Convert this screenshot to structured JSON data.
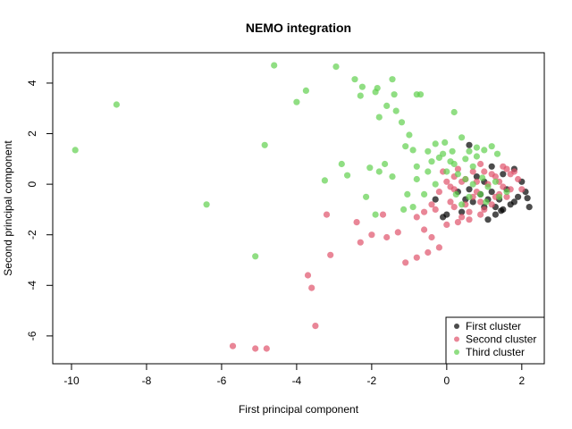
{
  "chart_data": {
    "type": "scatter",
    "title": "NEMO integration",
    "xlabel": "First principal component",
    "ylabel": "Second principal component",
    "xlim": [
      -10.5,
      2.6
    ],
    "ylim": [
      -7.1,
      5.2
    ],
    "xticks": [
      -10,
      -8,
      -6,
      -4,
      -2,
      0,
      2
    ],
    "yticks": [
      -6,
      -4,
      -2,
      0,
      2,
      4
    ],
    "legend_position": "bottom-right",
    "grid": false,
    "series": [
      {
        "name": "First cluster",
        "color": "#000000",
        "points": [
          [
            0.6,
            1.55
          ],
          [
            1.2,
            0.7
          ],
          [
            1.5,
            0.4
          ],
          [
            1.8,
            0.6
          ],
          [
            2.0,
            0.1
          ],
          [
            2.1,
            -0.3
          ],
          [
            2.15,
            -0.55
          ],
          [
            2.2,
            -0.9
          ],
          [
            1.9,
            -0.5
          ],
          [
            1.7,
            -0.8
          ],
          [
            1.5,
            -1.0
          ],
          [
            1.3,
            -1.2
          ],
          [
            1.1,
            -1.4
          ],
          [
            1.0,
            -0.9
          ],
          [
            0.9,
            -0.4
          ],
          [
            1.2,
            -0.3
          ],
          [
            1.4,
            -0.6
          ],
          [
            1.6,
            -0.2
          ],
          [
            1.8,
            -0.7
          ],
          [
            0.8,
            0.3
          ],
          [
            0.7,
            -0.7
          ],
          [
            0.5,
            -0.6
          ],
          [
            0.4,
            -1.1
          ],
          [
            0.3,
            -0.3
          ],
          [
            0.0,
            -1.2
          ],
          [
            -0.3,
            -0.6
          ],
          [
            -0.1,
            -1.3
          ],
          [
            1.0,
            0.1
          ],
          [
            1.3,
            -0.9
          ],
          [
            0.6,
            -0.2
          ],
          [
            1.45,
            -1.05
          ],
          [
            1.1,
            -0.6
          ]
        ]
      },
      {
        "name": "Second cluster",
        "color": "#df536b",
        "points": [
          [
            0.9,
            0.8
          ],
          [
            1.0,
            0.5
          ],
          [
            1.3,
            0.3
          ],
          [
            1.5,
            0.7
          ],
          [
            1.7,
            0.4
          ],
          [
            1.9,
            0.2
          ],
          [
            1.1,
            0.0
          ],
          [
            1.4,
            0.1
          ],
          [
            1.7,
            -0.2
          ],
          [
            0.8,
            -0.3
          ],
          [
            0.5,
            -0.8
          ],
          [
            0.2,
            -0.9
          ],
          [
            0.4,
            -1.3
          ],
          [
            0.6,
            -1.1
          ],
          [
            0.9,
            -1.2
          ],
          [
            1.2,
            -0.8
          ],
          [
            1.4,
            -0.4
          ],
          [
            1.6,
            -0.5
          ],
          [
            0.3,
            0.6
          ],
          [
            0.0,
            0.1
          ],
          [
            -0.2,
            -0.3
          ],
          [
            -0.4,
            -0.8
          ],
          [
            -0.6,
            -1.1
          ],
          [
            -0.8,
            -1.3
          ],
          [
            -0.6,
            -1.8
          ],
          [
            -0.4,
            -2.1
          ],
          [
            -0.2,
            -2.5
          ],
          [
            -0.5,
            -2.7
          ],
          [
            -0.8,
            -2.9
          ],
          [
            -1.1,
            -3.1
          ],
          [
            -1.3,
            -1.9
          ],
          [
            -1.6,
            -2.1
          ],
          [
            -2.0,
            -2.0
          ],
          [
            -1.7,
            -1.2
          ],
          [
            -2.4,
            -1.5
          ],
          [
            -2.3,
            -2.3
          ],
          [
            -3.2,
            -1.2
          ],
          [
            -3.1,
            -2.8
          ],
          [
            -3.7,
            -3.6
          ],
          [
            -3.6,
            -4.1
          ],
          [
            -3.5,
            -5.6
          ],
          [
            -5.7,
            -6.4
          ],
          [
            -5.1,
            -6.5
          ],
          [
            -4.8,
            -6.5
          ],
          [
            0.1,
            -0.1
          ],
          [
            0.2,
            0.3
          ],
          [
            0.5,
            0.2
          ],
          [
            0.7,
            0.5
          ],
          [
            1.8,
            0.5
          ],
          [
            2.0,
            -0.2
          ],
          [
            0.6,
            -1.4
          ],
          [
            0.3,
            -1.5
          ],
          [
            0.0,
            -1.6
          ],
          [
            0.9,
            -0.7
          ],
          [
            1.0,
            -1.0
          ],
          [
            0.1,
            -0.7
          ],
          [
            -0.3,
            -1.0
          ],
          [
            1.2,
            0.4
          ],
          [
            0.4,
            0.1
          ],
          [
            0.7,
            -0.5
          ],
          [
            1.5,
            -0.1
          ],
          [
            1.6,
            0.6
          ],
          [
            0.2,
            -0.2
          ],
          [
            0.8,
            0.1
          ],
          [
            -0.1,
            0.5
          ],
          [
            1.3,
            -0.5
          ]
        ]
      },
      {
        "name": "Third cluster",
        "color": "#61d04f",
        "points": [
          [
            -9.9,
            1.35
          ],
          [
            -8.8,
            3.15
          ],
          [
            -6.4,
            -0.8
          ],
          [
            -5.1,
            -2.85
          ],
          [
            -4.85,
            1.55
          ],
          [
            -4.6,
            4.7
          ],
          [
            -4.0,
            3.25
          ],
          [
            -3.75,
            3.7
          ],
          [
            -2.95,
            4.65
          ],
          [
            -2.45,
            4.15
          ],
          [
            -2.3,
            3.5
          ],
          [
            -2.25,
            3.85
          ],
          [
            -1.85,
            3.8
          ],
          [
            -1.9,
            3.65
          ],
          [
            -1.45,
            4.15
          ],
          [
            -1.4,
            3.55
          ],
          [
            -1.35,
            2.9
          ],
          [
            -1.6,
            3.1
          ],
          [
            -1.8,
            2.65
          ],
          [
            -1.2,
            2.45
          ],
          [
            -0.8,
            3.55
          ],
          [
            -0.7,
            3.55
          ],
          [
            0.2,
            2.85
          ],
          [
            -2.05,
            0.65
          ],
          [
            -2.8,
            0.8
          ],
          [
            -3.25,
            0.15
          ],
          [
            -2.65,
            0.35
          ],
          [
            -2.15,
            -0.5
          ],
          [
            -1.9,
            -1.2
          ],
          [
            -1.65,
            0.8
          ],
          [
            -1.8,
            0.5
          ],
          [
            -1.45,
            0.3
          ],
          [
            -1.0,
            1.95
          ],
          [
            -1.1,
            1.5
          ],
          [
            -0.9,
            1.35
          ],
          [
            -0.8,
            0.7
          ],
          [
            -0.5,
            1.3
          ],
          [
            -0.3,
            1.6
          ],
          [
            -0.2,
            1.05
          ],
          [
            -0.05,
            1.65
          ],
          [
            0.15,
            1.3
          ],
          [
            0.4,
            1.85
          ],
          [
            0.6,
            1.3
          ],
          [
            0.8,
            1.1
          ],
          [
            1.0,
            1.35
          ],
          [
            1.2,
            1.5
          ],
          [
            1.35,
            1.2
          ],
          [
            -0.8,
            0.2
          ],
          [
            -0.6,
            -0.4
          ],
          [
            -0.9,
            -0.9
          ],
          [
            -1.05,
            -0.4
          ],
          [
            -1.15,
            -1.0
          ],
          [
            -0.5,
            0.5
          ],
          [
            -0.3,
            0.0
          ],
          [
            0.0,
            0.5
          ],
          [
            0.1,
            0.9
          ],
          [
            0.3,
            0.4
          ],
          [
            0.5,
            0.2
          ],
          [
            0.7,
            0.0
          ],
          [
            0.9,
            -0.4
          ],
          [
            1.1,
            -0.1
          ],
          [
            1.3,
            0.1
          ],
          [
            1.4,
            -0.5
          ],
          [
            1.6,
            -0.3
          ],
          [
            0.4,
            -0.8
          ],
          [
            0.6,
            -0.5
          ],
          [
            0.2,
            0.8
          ],
          [
            -0.1,
            1.2
          ],
          [
            0.5,
            1.0
          ],
          [
            0.8,
            1.45
          ],
          [
            0.95,
            0.25
          ],
          [
            0.25,
            -0.4
          ],
          [
            -0.4,
            0.9
          ],
          [
            1.05,
            -0.7
          ],
          [
            0.7,
            0.7
          ]
        ]
      }
    ]
  }
}
